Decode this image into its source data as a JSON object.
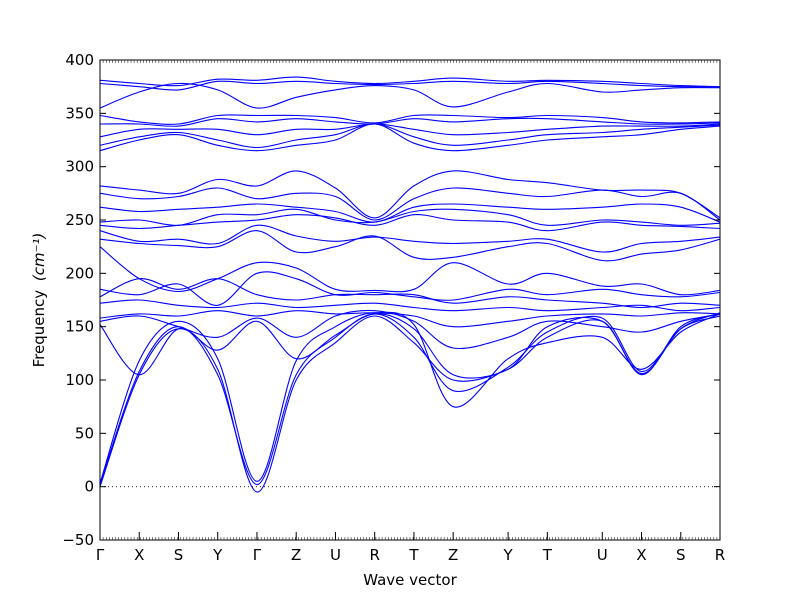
{
  "chart_data": {
    "type": "line",
    "xlabel": "Wave vector",
    "ylabel": "Frequency",
    "ylabel_unit": "(cm⁻¹)",
    "ylim": [
      -50,
      400
    ],
    "yticks": [
      -50,
      0,
      50,
      100,
      150,
      200,
      250,
      300,
      350,
      400
    ],
    "ytick_labels": [
      "−50",
      "0",
      "50",
      "100",
      "150",
      "200",
      "250",
      "300",
      "350",
      "400"
    ],
    "kpath": [
      {
        "label": "Γ",
        "x": 0.0
      },
      {
        "label": "X",
        "x": 0.5
      },
      {
        "label": "S",
        "x": 1.0
      },
      {
        "label": "Y",
        "x": 1.5
      },
      {
        "label": "Γ",
        "x": 2.0
      },
      {
        "label": "Z",
        "x": 2.5
      },
      {
        "label": "U",
        "x": 3.0
      },
      {
        "label": "R",
        "x": 3.5
      },
      {
        "label": "T",
        "x": 4.0
      },
      {
        "label": "Z",
        "x": 4.5
      },
      {
        "label": "Y",
        "x": 5.2
      },
      {
        "label": "T",
        "x": 5.7
      },
      {
        "label": "U",
        "x": 6.4
      },
      {
        "label": "X",
        "x": 6.9
      },
      {
        "label": "S",
        "x": 7.4
      },
      {
        "label": "R",
        "x": 7.9
      }
    ],
    "xlim": [
      0,
      7.9
    ],
    "zero_line": true,
    "line_color": "#0000ff",
    "series": [
      {
        "x": [
          0,
          0.5,
          1,
          1.5,
          2,
          2.5,
          3,
          3.5,
          4,
          4.5,
          5.2,
          5.7,
          6.4,
          6.9,
          7.4,
          7.9
        ],
        "values": [
          0,
          105,
          148,
          110,
          -5,
          100,
          135,
          160,
          135,
          100,
          110,
          140,
          155,
          105,
          150,
          162
        ]
      },
      {
        "x": [
          0,
          0.5,
          1,
          1.5,
          2,
          2.5,
          3,
          3.5,
          4,
          4.5,
          5.2,
          5.7,
          6.4,
          6.9,
          7.4,
          7.9
        ],
        "values": [
          2,
          108,
          150,
          105,
          2,
          105,
          140,
          162,
          140,
          90,
          112,
          145,
          158,
          108,
          148,
          160
        ]
      },
      {
        "x": [
          0,
          0.5,
          1,
          1.5,
          2,
          2.5,
          3,
          3.5,
          4,
          4.5,
          5.2,
          5.7,
          6.4,
          6.9,
          7.4,
          7.9
        ],
        "values": [
          3,
          118,
          155,
          120,
          5,
          118,
          150,
          163,
          152,
          75,
          120,
          135,
          140,
          110,
          145,
          162
        ]
      },
      {
        "x": [
          0,
          0.5,
          1,
          1.5,
          2,
          2.5,
          3,
          3.5,
          4,
          4.5,
          5.2,
          5.7,
          6.4,
          6.9,
          7.4,
          7.9
        ],
        "values": [
          152,
          105,
          148,
          128,
          155,
          120,
          142,
          162,
          148,
          105,
          110,
          150,
          155,
          106,
          148,
          163
        ]
      },
      {
        "x": [
          0,
          0.5,
          1,
          1.5,
          2,
          2.5,
          3,
          3.5,
          4,
          4.5,
          5.2,
          5.7,
          6.4,
          6.9,
          7.4,
          7.9
        ],
        "values": [
          155,
          160,
          150,
          140,
          158,
          140,
          160,
          165,
          155,
          130,
          140,
          155,
          150,
          145,
          155,
          162
        ]
      },
      {
        "x": [
          0,
          0.5,
          1,
          1.5,
          2,
          2.5,
          3,
          3.5,
          4,
          4.5,
          5.2,
          5.7,
          6.4,
          6.9,
          7.4,
          7.9
        ],
        "values": [
          158,
          162,
          160,
          165,
          160,
          165,
          162,
          163,
          160,
          150,
          155,
          160,
          162,
          160,
          163,
          162
        ]
      },
      {
        "x": [
          0,
          0.5,
          1,
          1.5,
          2,
          2.5,
          3,
          3.5,
          4,
          4.5,
          5.2,
          5.7,
          6.4,
          6.9,
          7.4,
          7.9
        ],
        "values": [
          172,
          175,
          170,
          168,
          172,
          168,
          170,
          172,
          168,
          165,
          168,
          165,
          168,
          170,
          165,
          168
        ]
      },
      {
        "x": [
          0,
          0.5,
          1,
          1.5,
          2,
          2.5,
          3,
          3.5,
          4,
          4.5,
          5.2,
          5.7,
          6.4,
          6.9,
          7.4,
          7.9
        ],
        "values": [
          178,
          195,
          185,
          195,
          180,
          175,
          180,
          180,
          180,
          172,
          178,
          175,
          172,
          168,
          172,
          170
        ]
      },
      {
        "x": [
          0,
          0.5,
          1,
          1.5,
          2,
          2.5,
          3,
          3.5,
          4,
          4.5,
          5.2,
          5.7,
          6.4,
          6.9,
          7.4,
          7.9
        ],
        "values": [
          185,
          180,
          190,
          170,
          200,
          195,
          180,
          182,
          178,
          175,
          185,
          180,
          185,
          180,
          178,
          182
        ]
      },
      {
        "x": [
          0,
          0.5,
          1,
          1.5,
          2,
          2.5,
          3,
          3.5,
          4,
          4.5,
          5.2,
          5.7,
          6.4,
          6.9,
          7.4,
          7.9
        ],
        "values": [
          225,
          195,
          183,
          195,
          210,
          205,
          185,
          184,
          185,
          210,
          190,
          200,
          188,
          190,
          180,
          184
        ]
      },
      {
        "x": [
          0,
          0.5,
          1,
          1.5,
          2,
          2.5,
          3,
          3.5,
          4,
          4.5,
          5.2,
          5.7,
          6.4,
          6.9,
          7.4,
          7.9
        ],
        "values": [
          232,
          228,
          226,
          225,
          240,
          220,
          225,
          235,
          215,
          215,
          225,
          228,
          212,
          218,
          222,
          232
        ]
      },
      {
        "x": [
          0,
          0.5,
          1,
          1.5,
          2,
          2.5,
          3,
          3.5,
          4,
          4.5,
          5.2,
          5.7,
          6.4,
          6.9,
          7.4,
          7.9
        ],
        "values": [
          240,
          230,
          232,
          228,
          245,
          235,
          230,
          234,
          230,
          228,
          230,
          232,
          220,
          228,
          230,
          234
        ]
      },
      {
        "x": [
          0,
          0.5,
          1,
          1.5,
          2,
          2.5,
          3,
          3.5,
          4,
          4.5,
          5.2,
          5.7,
          6.4,
          6.9,
          7.4,
          7.9
        ],
        "values": [
          245,
          242,
          245,
          248,
          250,
          255,
          252,
          245,
          255,
          250,
          248,
          240,
          248,
          245,
          244,
          242
        ]
      },
      {
        "x": [
          0,
          0.5,
          1,
          1.5,
          2,
          2.5,
          3,
          3.5,
          4,
          4.5,
          5.2,
          5.7,
          6.4,
          6.9,
          7.4,
          7.9
        ],
        "values": [
          248,
          250,
          245,
          255,
          255,
          260,
          250,
          248,
          258,
          260,
          255,
          245,
          250,
          248,
          245,
          247
        ]
      },
      {
        "x": [
          0,
          0.5,
          1,
          1.5,
          2,
          2.5,
          3,
          3.5,
          4,
          4.5,
          5.2,
          5.7,
          6.4,
          6.9,
          7.4,
          7.9
        ],
        "values": [
          262,
          258,
          260,
          262,
          265,
          262,
          258,
          248,
          262,
          265,
          262,
          260,
          262,
          265,
          262,
          248
        ]
      },
      {
        "x": [
          0,
          0.5,
          1,
          1.5,
          2,
          2.5,
          3,
          3.5,
          4,
          4.5,
          5.2,
          5.7,
          6.4,
          6.9,
          7.4,
          7.9
        ],
        "values": [
          275,
          270,
          272,
          280,
          270,
          275,
          272,
          250,
          270,
          280,
          275,
          272,
          278,
          272,
          275,
          250
        ]
      },
      {
        "x": [
          0,
          0.5,
          1,
          1.5,
          2,
          2.5,
          3,
          3.5,
          4,
          4.5,
          5.2,
          5.7,
          6.4,
          6.9,
          7.4,
          7.9
        ],
        "values": [
          282,
          278,
          275,
          288,
          282,
          296,
          280,
          252,
          282,
          296,
          288,
          285,
          278,
          278,
          275,
          252
        ]
      },
      {
        "x": [
          0,
          0.5,
          1,
          1.5,
          2,
          2.5,
          3,
          3.5,
          4,
          4.5,
          5.2,
          5.7,
          6.4,
          6.9,
          7.4,
          7.9
        ],
        "values": [
          315,
          325,
          330,
          320,
          315,
          320,
          325,
          340,
          322,
          315,
          320,
          325,
          328,
          330,
          335,
          338
        ]
      },
      {
        "x": [
          0,
          0.5,
          1,
          1.5,
          2,
          2.5,
          3,
          3.5,
          4,
          4.5,
          5.2,
          5.7,
          6.4,
          6.9,
          7.4,
          7.9
        ],
        "values": [
          320,
          328,
          332,
          325,
          318,
          325,
          330,
          340,
          328,
          320,
          325,
          330,
          332,
          335,
          337,
          339
        ]
      },
      {
        "x": [
          0,
          0.5,
          1,
          1.5,
          2,
          2.5,
          3,
          3.5,
          4,
          4.5,
          5.2,
          5.7,
          6.4,
          6.9,
          7.4,
          7.9
        ],
        "values": [
          328,
          335,
          335,
          335,
          330,
          335,
          335,
          340,
          335,
          330,
          332,
          335,
          338,
          338,
          338,
          340
        ]
      },
      {
        "x": [
          0,
          0.5,
          1,
          1.5,
          2,
          2.5,
          3,
          3.5,
          4,
          4.5,
          5.2,
          5.7,
          6.4,
          6.9,
          7.4,
          7.9
        ],
        "values": [
          340,
          340,
          338,
          345,
          342,
          345,
          342,
          340,
          345,
          342,
          345,
          345,
          342,
          340,
          340,
          341
        ]
      },
      {
        "x": [
          0,
          0.5,
          1,
          1.5,
          2,
          2.5,
          3,
          3.5,
          4,
          4.5,
          5.2,
          5.7,
          6.4,
          6.9,
          7.4,
          7.9
        ],
        "values": [
          348,
          342,
          340,
          348,
          348,
          348,
          346,
          341,
          348,
          348,
          346,
          348,
          346,
          342,
          341,
          342
        ]
      },
      {
        "x": [
          0,
          0.5,
          1,
          1.5,
          2,
          2.5,
          3,
          3.5,
          4,
          4.5,
          5.2,
          5.7,
          6.4,
          6.9,
          7.4,
          7.9
        ],
        "values": [
          355,
          370,
          378,
          372,
          355,
          365,
          372,
          376,
          372,
          356,
          370,
          378,
          370,
          372,
          374,
          374
        ]
      },
      {
        "x": [
          0,
          0.5,
          1,
          1.5,
          2,
          2.5,
          3,
          3.5,
          4,
          4.5,
          5.2,
          5.7,
          6.4,
          6.9,
          7.4,
          7.9
        ],
        "values": [
          378,
          375,
          372,
          380,
          378,
          380,
          378,
          377,
          378,
          380,
          378,
          380,
          378,
          376,
          375,
          375
        ]
      },
      {
        "x": [
          0,
          0.5,
          1,
          1.5,
          2,
          2.5,
          3,
          3.5,
          4,
          4.5,
          5.2,
          5.7,
          6.4,
          6.9,
          7.4,
          7.9
        ],
        "values": [
          381,
          378,
          376,
          382,
          381,
          384,
          380,
          378,
          380,
          383,
          380,
          381,
          380,
          378,
          376,
          375
        ]
      }
    ]
  }
}
